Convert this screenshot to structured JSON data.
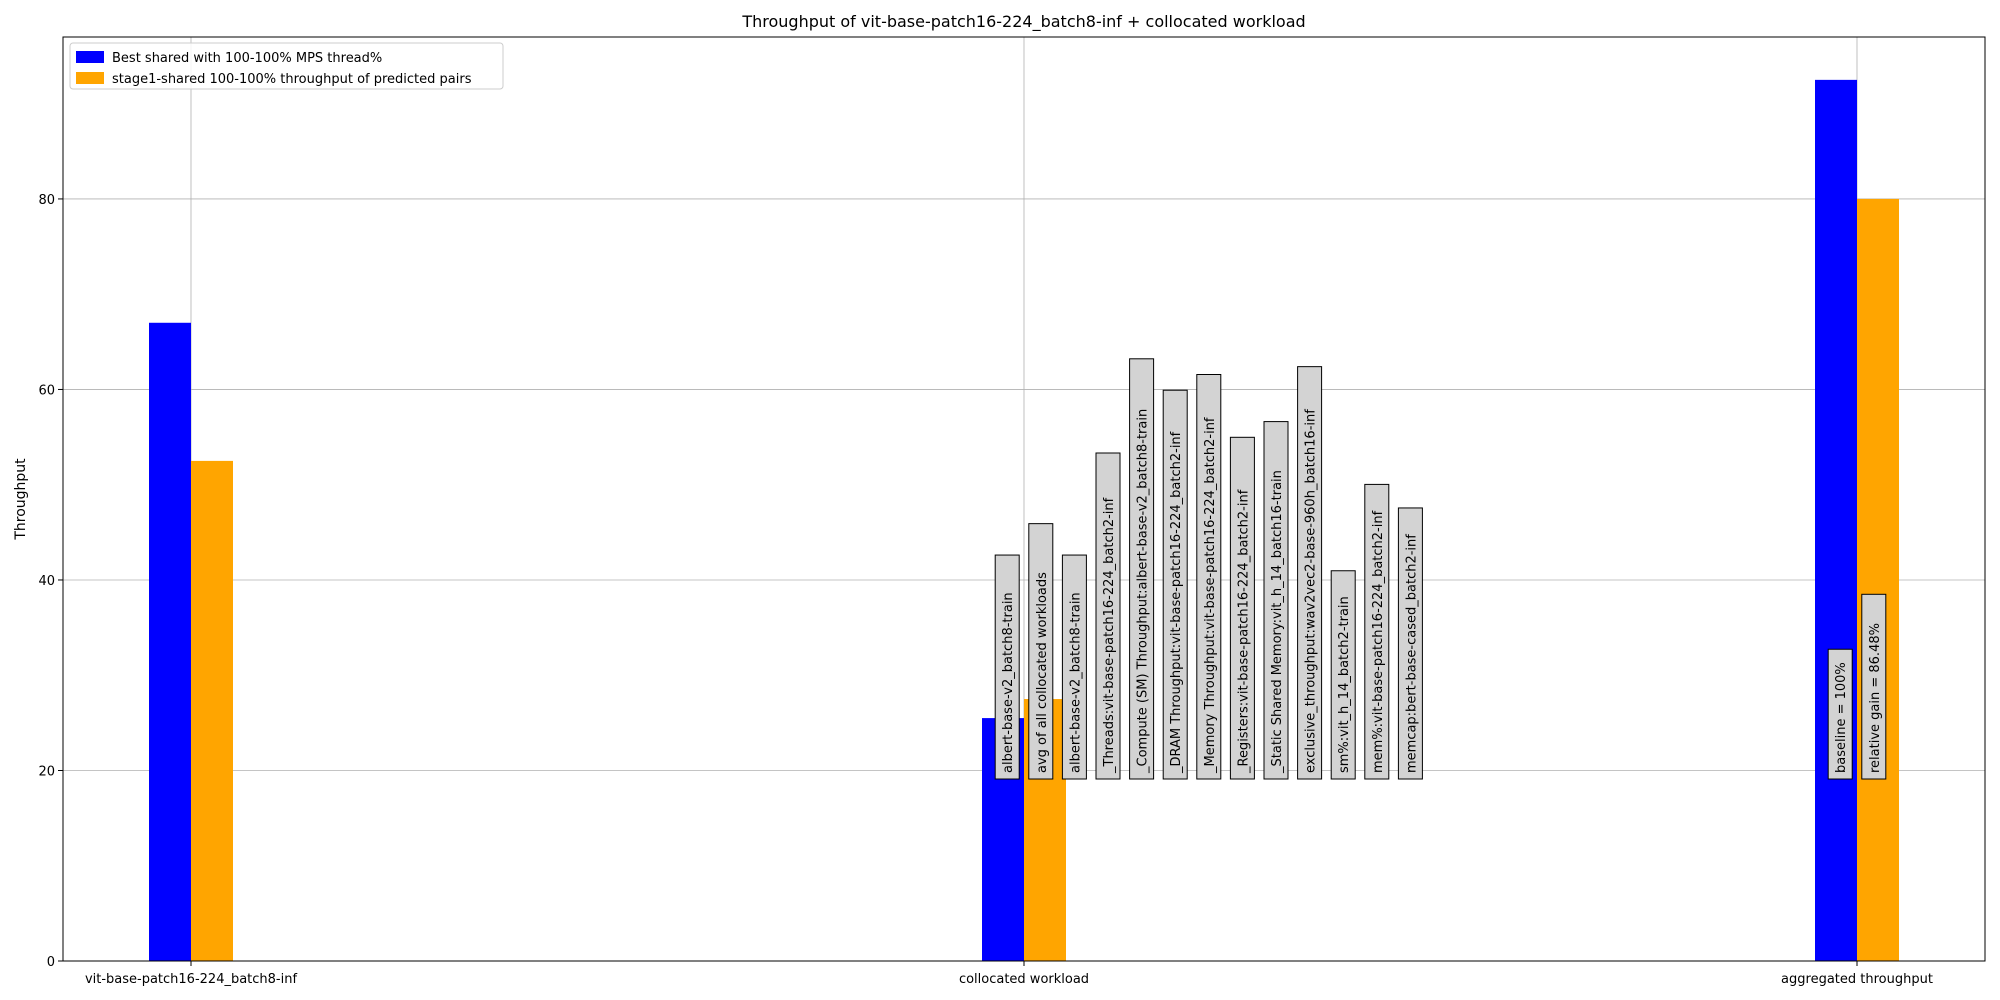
{
  "chart_data": {
    "type": "bar",
    "title": "Throughput of vit-base-patch16-224_batch8-inf + collocated workload",
    "xlabel": "",
    "ylabel": "Throughput",
    "ylim": [
      0,
      97
    ],
    "yticks": [
      0,
      20,
      40,
      60,
      80
    ],
    "grid": true,
    "legend_position": "top-left",
    "categories": [
      "vit-base-patch16-224_batch8-inf",
      "collocated workload",
      "aggregated throughput"
    ],
    "series": [
      {
        "name": "Best shared with 100-100% MPS thread%",
        "color": "#0000ff",
        "values": [
          67.0,
          25.5,
          92.5
        ]
      },
      {
        "name": "stage1-shared 100-100% throughput of predicted pairs",
        "color": "#ffa500",
        "values": [
          52.5,
          27.5,
          80.0
        ]
      }
    ],
    "annotations": [
      {
        "text": "albert-base-v2_batch8-train",
        "category": 1,
        "offset": -0.25
      },
      {
        "text": "avg of all collocated workloads",
        "category": 1,
        "offset": 0.25
      },
      {
        "text": "albert-base-v2_batch8-train",
        "category": 1,
        "offset": 0.75
      },
      {
        "text": "_Threads:vit-base-patch16-224_batch2-inf",
        "category": 1,
        "offset": 1.25
      },
      {
        "text": "_Compute (SM) Throughput:albert-base-v2_batch8-train",
        "category": 1,
        "offset": 1.75
      },
      {
        "text": "_DRAM Throughput:vit-base-patch16-224_batch2-inf",
        "category": 1,
        "offset": 2.25
      },
      {
        "text": "_Memory Throughput:vit-base-patch16-224_batch2-inf",
        "category": 1,
        "offset": 2.75
      },
      {
        "text": "_Registers:vit-base-patch16-224_batch2-inf",
        "category": 1,
        "offset": 3.25
      },
      {
        "text": "_Static Shared Memory:vit_h_14_batch16-train",
        "category": 1,
        "offset": 3.75
      },
      {
        "text": "exclusive_throughput:wav2vec2-base-960h_batch16-inf",
        "category": 1,
        "offset": 4.25
      },
      {
        "text": "sm%:vit_h_14_batch2-train",
        "category": 1,
        "offset": 4.75
      },
      {
        "text": "mem%:vit-base-patch16-224_batch2-inf",
        "category": 1,
        "offset": 5.25
      },
      {
        "text": "memcap:bert-base-cased_batch2-inf",
        "category": 1,
        "offset": 5.75
      },
      {
        "text": "baseline = 100%",
        "category": 2,
        "offset": -0.25
      },
      {
        "text": "relative gain = 86.48%",
        "category": 2,
        "offset": 0.25
      }
    ]
  }
}
